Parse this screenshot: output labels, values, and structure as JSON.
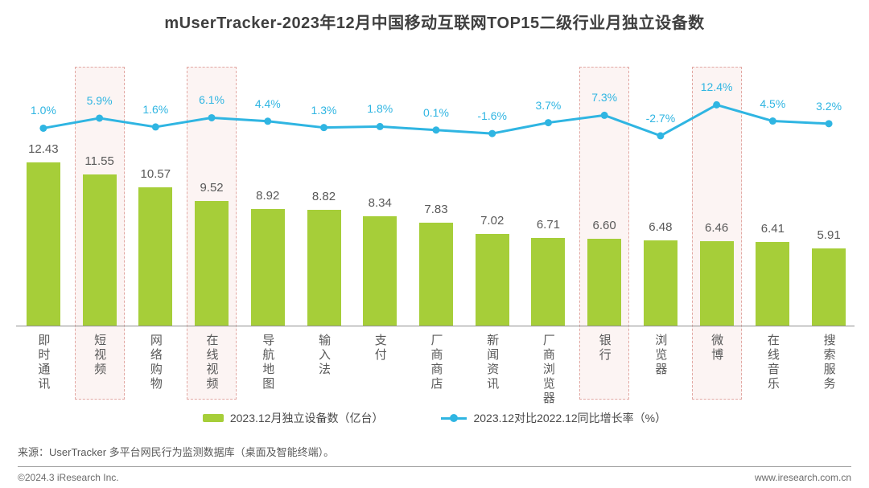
{
  "title": "mUserTracker-2023年12月中国移动互联网TOP15二级行业月独立设备数",
  "chart_data": {
    "type": "combo",
    "title": "mUserTracker-2023年12月中国移动互联网TOP15二级行业月独立设备数",
    "categories": [
      "即时通讯",
      "短视频",
      "网络购物",
      "在线视频",
      "导航地图",
      "输入法",
      "支付",
      "厂商商店",
      "新闻资讯",
      "厂商浏览器",
      "银行",
      "浏览器",
      "微博",
      "在线音乐",
      "搜索服务"
    ],
    "series": [
      {
        "name": "2023.12月独立设备数（亿台）",
        "type": "bar",
        "values": [
          12.43,
          11.55,
          10.57,
          9.52,
          8.92,
          8.82,
          8.34,
          7.83,
          7.02,
          6.71,
          6.6,
          6.48,
          6.46,
          6.41,
          5.91
        ],
        "color": "#a6ce39"
      },
      {
        "name": "2023.12对比2022.12同比增长率（%）",
        "type": "line",
        "values": [
          1.0,
          5.9,
          1.6,
          6.1,
          4.4,
          1.3,
          1.8,
          0.1,
          -1.6,
          3.7,
          7.3,
          -2.7,
          12.4,
          4.5,
          3.2
        ],
        "color": "#2fb5e2"
      }
    ],
    "highlighted_categories": [
      "短视频",
      "在线视频",
      "银行",
      "微博"
    ],
    "xlabel": "",
    "ylabel": "",
    "ylim_bar": [
      0,
      13
    ],
    "grid": false,
    "legend_position": "bottom"
  },
  "legend": {
    "bar_label": "2023.12月独立设备数（亿台）",
    "line_label": "2023.12对比2022.12同比增长率（%）"
  },
  "footer": {
    "source": "来源：UserTracker 多平台网民行为监测数据库（桌面及智能终端）。",
    "copyright": "©2024.3 iResearch Inc.",
    "website": "www.iresearch.com.cn"
  },
  "colors": {
    "bar": "#a6ce39",
    "line": "#2fb5e2",
    "highlight_fill": "#fcf4f3",
    "highlight_border": "#e2a8a3",
    "value_label": "#595959",
    "category_label": "#595959",
    "axis": "#8f8f8f",
    "title": "#3f3f3f"
  }
}
